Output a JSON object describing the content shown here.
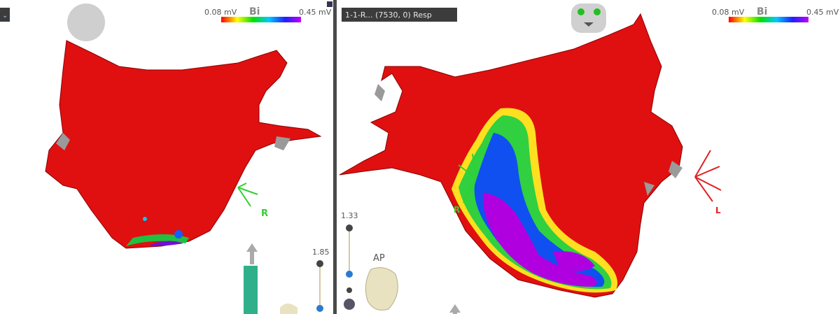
{
  "left_panel": {
    "scale": {
      "min_label": "0.08 mV",
      "mode": "Bi",
      "max_label": "0.45 mV"
    },
    "orientation_label": "R",
    "zoom_value": "1.85"
  },
  "right_panel": {
    "map_selector": "1-1-R... (7530, 0) Resp",
    "scale": {
      "min_label": "0.08 mV",
      "mode": "Bi",
      "max_label": "0.45 mV"
    },
    "orientation_right": "R",
    "orientation_left": "L",
    "zoom_value": "1.33",
    "view_label": "AP"
  }
}
